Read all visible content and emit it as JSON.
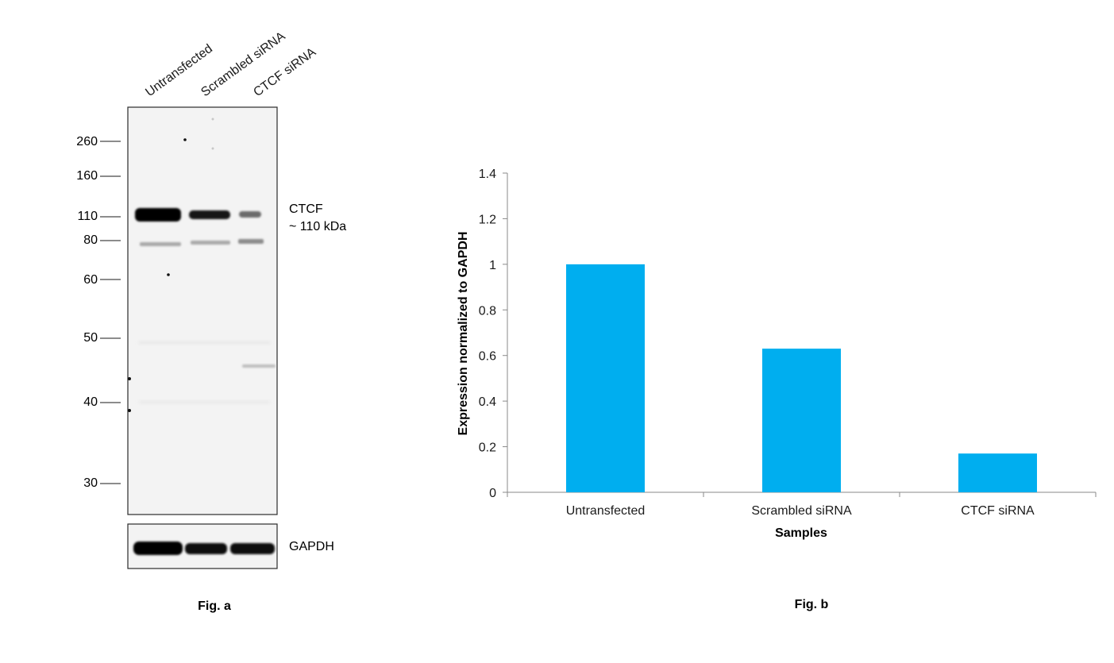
{
  "figure_a": {
    "caption": "Fig. a",
    "lanes": [
      "Untransfected",
      "Scrambled siRNA",
      "CTCF siRNA"
    ],
    "mw_markers": [
      "260",
      "160",
      "110",
      "80",
      "60",
      "50",
      "40",
      "30"
    ],
    "band_label_line1": "CTCF",
    "band_label_line2": "~ 110 kDa",
    "loading_control_label": "GAPDH"
  },
  "figure_b": {
    "caption": "Fig. b"
  },
  "chart_data": {
    "type": "bar",
    "categories": [
      "Untransfected",
      "Scrambled siRNA",
      "CTCF siRNA"
    ],
    "values": [
      1.0,
      0.63,
      0.17
    ],
    "yticks": [
      "0",
      "0.2",
      "0.4",
      "0.6",
      "0.8",
      "1",
      "1.2",
      "1.4"
    ],
    "ylim": [
      0,
      1.4
    ],
    "xlabel": "Samples",
    "ylabel": "Expression normalized to GAPDH",
    "bar_color": "#00AEEF",
    "grid": false,
    "legend": "none"
  }
}
